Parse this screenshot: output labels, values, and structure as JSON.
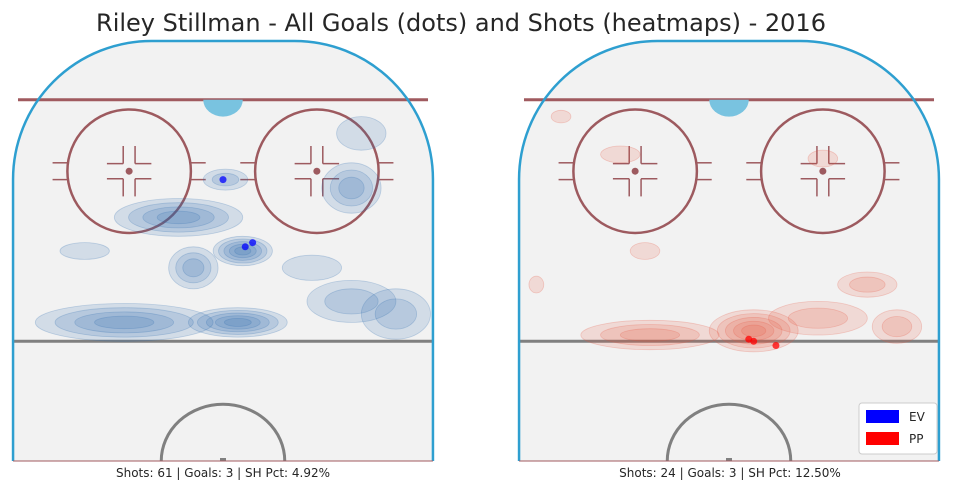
{
  "title": "Riley Stillman - All Goals (dots) and Shots (heatmaps) - 2016",
  "colors": {
    "ice": "#f2f2f2",
    "boards": "#2e9fd0",
    "red_line": "#a05a5f",
    "crease": "#79c3e0",
    "blue_line": "#808080",
    "circle": "#9d5a5f",
    "ev": "#0000ff",
    "pp": "#ff0000"
  },
  "legend": [
    {
      "label": "EV",
      "color": "#0000ff"
    },
    {
      "label": "PP",
      "color": "#ff0000"
    }
  ],
  "chart_data": [
    {
      "type": "heatmap",
      "panel": "left",
      "strength": "EV",
      "caption": "Shots: 61 | Goals: 3 | SH Pct: 4.92%",
      "shots": 61,
      "goals_count": 3,
      "sh_pct": "4.92%",
      "heat_color": "#2b6cb0",
      "goals": [
        {
          "x": 0.0,
          "y": 67
        },
        {
          "x": 4.5,
          "y": 51
        },
        {
          "x": 6.0,
          "y": 52
        }
      ],
      "heat_blobs": [
        {
          "x": 0.5,
          "y": 67,
          "rx": 4.5,
          "ry": 2.5,
          "level": 2
        },
        {
          "x": -9,
          "y": 58,
          "rx": 13,
          "ry": 4.5,
          "level": 4
        },
        {
          "x": -6,
          "y": 46,
          "rx": 5,
          "ry": 5,
          "level": 3
        },
        {
          "x": 4,
          "y": 50,
          "rx": 6,
          "ry": 3.5,
          "level": 5
        },
        {
          "x": 3,
          "y": 33,
          "rx": 10,
          "ry": 3.5,
          "level": 5
        },
        {
          "x": -20,
          "y": 33,
          "rx": 18,
          "ry": 4.5,
          "level": 4
        },
        {
          "x": 26,
          "y": 38,
          "rx": 9,
          "ry": 5,
          "level": 2
        },
        {
          "x": 35,
          "y": 35,
          "rx": 7,
          "ry": 6,
          "level": 2
        },
        {
          "x": 26,
          "y": 65,
          "rx": 6,
          "ry": 6,
          "level": 3
        },
        {
          "x": 28,
          "y": 78,
          "rx": 5,
          "ry": 4,
          "level": 1
        },
        {
          "x": -28,
          "y": 50,
          "rx": 5,
          "ry": 2,
          "level": 1
        },
        {
          "x": 18,
          "y": 46,
          "rx": 6,
          "ry": 3,
          "level": 1
        }
      ]
    },
    {
      "type": "heatmap",
      "panel": "right",
      "strength": "PP",
      "caption": "Shots: 24 | Goals: 3 | SH Pct: 12.50%",
      "shots": 24,
      "goals_count": 3,
      "sh_pct": "12.50%",
      "heat_color": "#e8553e",
      "goals": [
        {
          "x": 4.0,
          "y": 29
        },
        {
          "x": 5.0,
          "y": 28.5
        },
        {
          "x": 9.5,
          "y": 27.5
        }
      ],
      "heat_blobs": [
        {
          "x": 5,
          "y": 31,
          "rx": 9,
          "ry": 5,
          "level": 5
        },
        {
          "x": -16,
          "y": 30,
          "rx": 14,
          "ry": 3.5,
          "level": 3
        },
        {
          "x": 18,
          "y": 34,
          "rx": 10,
          "ry": 4,
          "level": 2
        },
        {
          "x": 28,
          "y": 42,
          "rx": 6,
          "ry": 3,
          "level": 2
        },
        {
          "x": 34,
          "y": 32,
          "rx": 5,
          "ry": 4,
          "level": 2
        },
        {
          "x": -22,
          "y": 73,
          "rx": 4,
          "ry": 2,
          "level": 1
        },
        {
          "x": -34,
          "y": 82,
          "rx": 2,
          "ry": 1.5,
          "level": 1
        },
        {
          "x": 19,
          "y": 72,
          "rx": 3,
          "ry": 2,
          "level": 1
        },
        {
          "x": -17,
          "y": 50,
          "rx": 3,
          "ry": 2,
          "level": 1
        },
        {
          "x": -39,
          "y": 42,
          "rx": 1.5,
          "ry": 2,
          "level": 1
        }
      ]
    }
  ]
}
